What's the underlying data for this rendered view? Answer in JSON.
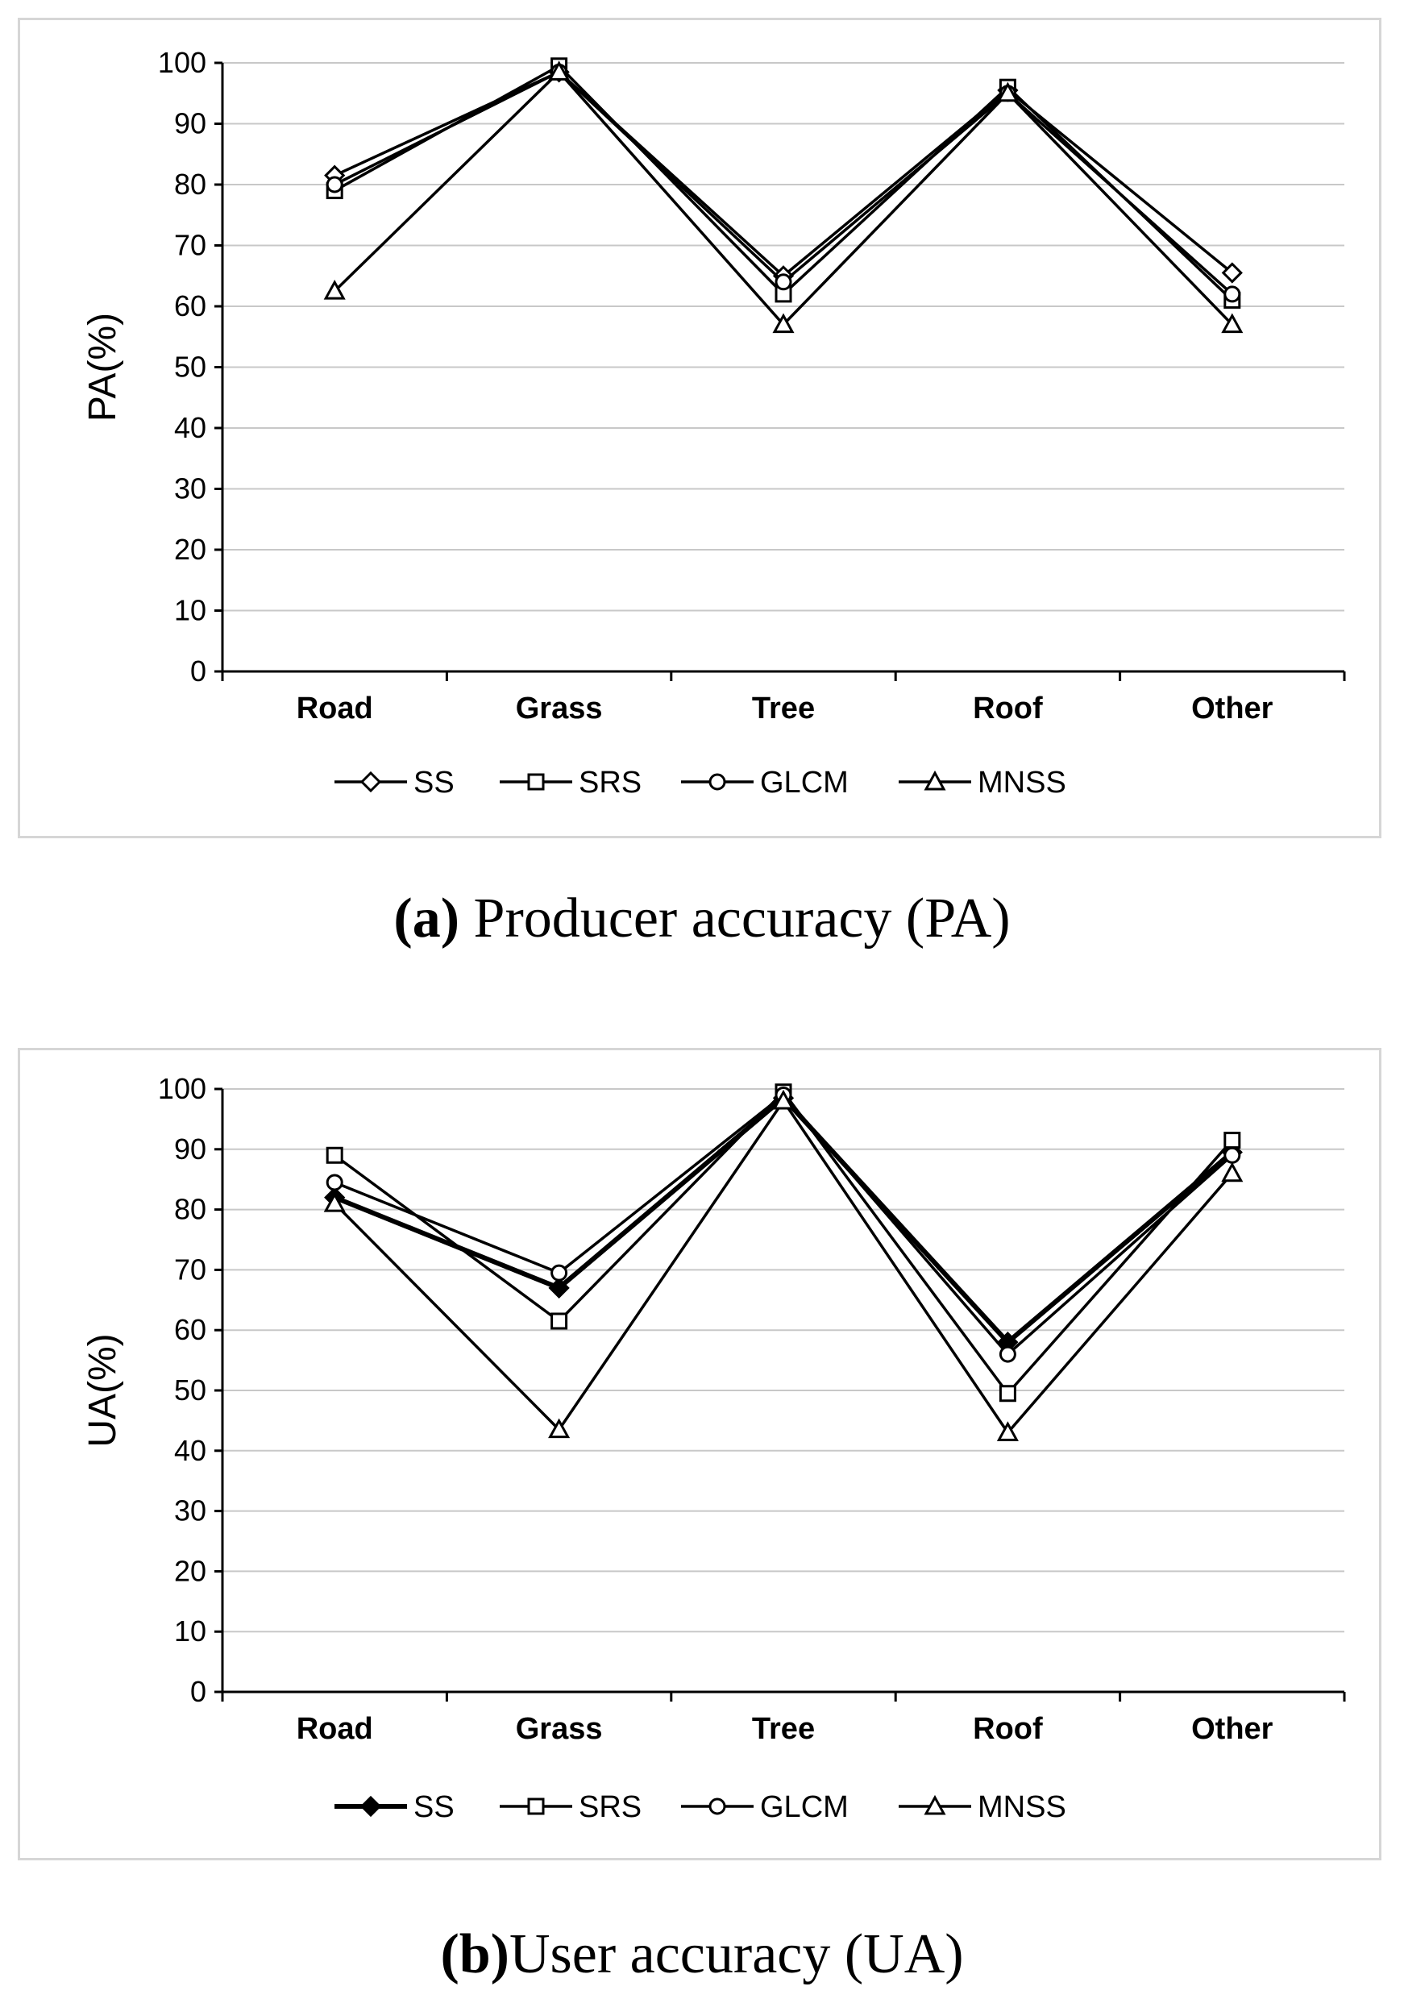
{
  "chart_data": [
    {
      "type": "line",
      "id": "a",
      "ylabel": "PA(%)",
      "xlabel": "",
      "ylim": [
        0,
        100
      ],
      "yticks": [
        0,
        10,
        20,
        30,
        40,
        50,
        60,
        70,
        80,
        90,
        100
      ],
      "grid": true,
      "legend_position": "bottom",
      "categories": [
        "Road",
        "Grass",
        "Tree",
        "Roof",
        "Other"
      ],
      "series": [
        {
          "name": "SS",
          "marker": "diamond",
          "values": [
            81.5,
            98.5,
            65,
            95.5,
            65.5
          ]
        },
        {
          "name": "SRS",
          "marker": "square",
          "values": [
            79,
            99.5,
            62,
            96,
            61
          ]
        },
        {
          "name": "GLCM",
          "marker": "circle",
          "values": [
            80,
            98.5,
            64,
            95,
            62
          ]
        },
        {
          "name": "MNSS",
          "marker": "triangle",
          "values": [
            62.5,
            98.5,
            57,
            95,
            57
          ]
        }
      ],
      "caption_tag": "(a)",
      "caption_text": "Producer accuracy (PA)"
    },
    {
      "type": "line",
      "id": "b",
      "ylabel": "UA(%)",
      "xlabel": "",
      "ylim": [
        0,
        100
      ],
      "yticks": [
        0,
        10,
        20,
        30,
        40,
        50,
        60,
        70,
        80,
        90,
        100
      ],
      "grid": true,
      "legend_position": "bottom",
      "categories": [
        "Road",
        "Grass",
        "Tree",
        "Roof",
        "Other"
      ],
      "series": [
        {
          "name": "SS",
          "marker": "filled-diamond",
          "values": [
            82,
            67,
            98.5,
            58,
            89.5
          ]
        },
        {
          "name": "SRS",
          "marker": "square",
          "values": [
            89,
            61.5,
            99.5,
            49.5,
            91.5
          ]
        },
        {
          "name": "GLCM",
          "marker": "circle",
          "values": [
            84.5,
            69.5,
            99,
            56,
            89
          ]
        },
        {
          "name": "MNSS",
          "marker": "triangle",
          "values": [
            81,
            43.5,
            98,
            43,
            86
          ]
        }
      ],
      "caption_tag": "(b)",
      "caption_text": "User accuracy (UA)"
    }
  ]
}
